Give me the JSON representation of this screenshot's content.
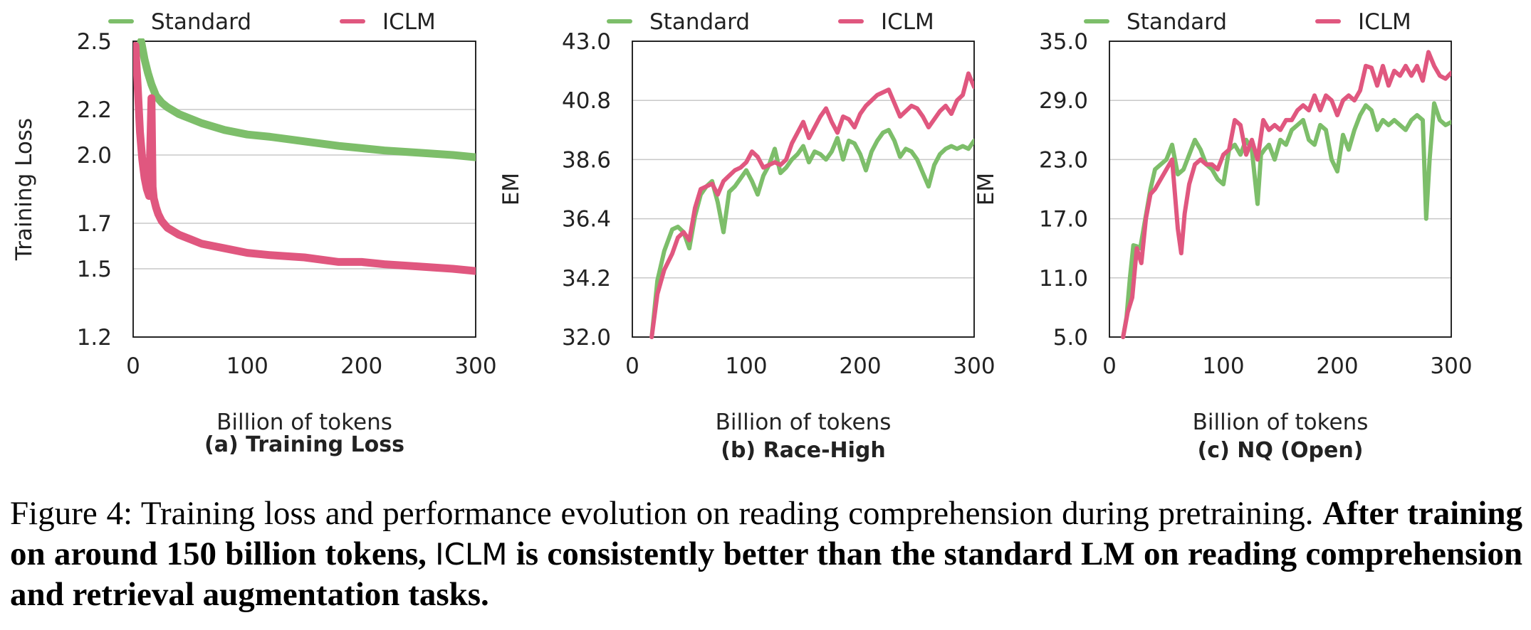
{
  "colors": {
    "standard": "#7dbe6a",
    "iclm": "#e0577f",
    "grid": "#c8c8c8",
    "axis": "#111111"
  },
  "chart_data": [
    {
      "type": "line",
      "panel": "(a) Training Loss",
      "xlabel": "Billion of tokens",
      "ylabel": "Training Loss",
      "xlim": [
        0,
        300
      ],
      "ylim": [
        1.2,
        2.5
      ],
      "xticks": [
        "0",
        "100",
        "200",
        "300"
      ],
      "yticks": [
        "1.2",
        "1.5",
        "1.7",
        "2.0",
        "2.2",
        "2.5"
      ],
      "legend_position": "top",
      "grid": true,
      "series": [
        {
          "name": "Standard",
          "x": [
            7,
            10,
            13,
            16,
            20,
            25,
            30,
            40,
            50,
            60,
            80,
            100,
            120,
            150,
            180,
            200,
            220,
            250,
            280,
            300
          ],
          "y": [
            2.5,
            2.42,
            2.36,
            2.31,
            2.26,
            2.23,
            2.21,
            2.18,
            2.16,
            2.14,
            2.11,
            2.09,
            2.08,
            2.06,
            2.04,
            2.03,
            2.02,
            2.01,
            2.0,
            1.99
          ]
        },
        {
          "name": "ICLM",
          "x": [
            2,
            4,
            6,
            8,
            10,
            12,
            14,
            16,
            17,
            18,
            20,
            22,
            25,
            30,
            40,
            50,
            60,
            80,
            100,
            120,
            150,
            180,
            200,
            220,
            250,
            280,
            300
          ],
          "y": [
            2.48,
            2.3,
            2.1,
            1.98,
            1.9,
            1.85,
            1.82,
            2.25,
            1.86,
            1.81,
            1.77,
            1.74,
            1.71,
            1.68,
            1.65,
            1.63,
            1.61,
            1.59,
            1.57,
            1.56,
            1.55,
            1.53,
            1.53,
            1.52,
            1.51,
            1.5,
            1.49
          ]
        }
      ]
    },
    {
      "type": "line",
      "panel": "(b) Race-High",
      "xlabel": "Billion of tokens",
      "ylabel": "EM",
      "xlim": [
        0,
        300
      ],
      "ylim": [
        32.0,
        43.0
      ],
      "xticks": [
        "0",
        "100",
        "200",
        "300"
      ],
      "yticks": [
        "32.0",
        "34.2",
        "36.4",
        "38.6",
        "40.8",
        "43.0"
      ],
      "legend_position": "top",
      "grid": true,
      "series": [
        {
          "name": "Standard",
          "x": [
            17,
            22,
            28,
            35,
            40,
            45,
            50,
            55,
            60,
            65,
            70,
            75,
            80,
            85,
            90,
            95,
            100,
            105,
            110,
            115,
            120,
            125,
            130,
            135,
            140,
            145,
            150,
            155,
            160,
            165,
            170,
            175,
            180,
            185,
            190,
            195,
            200,
            205,
            210,
            215,
            220,
            225,
            230,
            235,
            240,
            245,
            250,
            255,
            260,
            265,
            270,
            275,
            280,
            285,
            290,
            295,
            300
          ],
          "y": [
            32.0,
            34.1,
            35.2,
            36.0,
            36.1,
            35.9,
            35.3,
            36.5,
            37.3,
            37.6,
            37.8,
            37.0,
            35.9,
            37.4,
            37.6,
            37.9,
            38.2,
            37.8,
            37.3,
            38.0,
            38.4,
            39.0,
            38.1,
            38.3,
            38.6,
            38.8,
            39.1,
            38.5,
            38.9,
            38.8,
            38.6,
            38.9,
            39.4,
            38.6,
            39.3,
            39.2,
            38.8,
            38.2,
            38.9,
            39.3,
            39.6,
            39.7,
            39.3,
            38.7,
            39.0,
            38.9,
            38.6,
            38.1,
            37.6,
            38.4,
            38.8,
            39.0,
            39.1,
            39.0,
            39.1,
            39.0,
            39.3
          ]
        },
        {
          "name": "ICLM",
          "x": [
            17,
            22,
            28,
            35,
            40,
            45,
            50,
            55,
            60,
            65,
            70,
            75,
            80,
            85,
            90,
            95,
            100,
            105,
            110,
            115,
            120,
            125,
            130,
            135,
            140,
            145,
            150,
            155,
            160,
            165,
            170,
            175,
            180,
            185,
            190,
            195,
            200,
            205,
            210,
            215,
            220,
            225,
            230,
            235,
            240,
            245,
            250,
            255,
            260,
            265,
            270,
            275,
            280,
            285,
            290,
            295,
            300
          ],
          "y": [
            32.0,
            33.6,
            34.5,
            35.1,
            35.7,
            35.9,
            35.6,
            36.8,
            37.5,
            37.6,
            37.7,
            37.3,
            37.8,
            38.0,
            38.2,
            38.3,
            38.5,
            38.9,
            38.7,
            38.3,
            38.4,
            38.5,
            38.4,
            38.6,
            39.2,
            39.6,
            40.0,
            39.4,
            39.8,
            40.2,
            40.5,
            40.0,
            39.6,
            40.2,
            40.1,
            39.8,
            40.3,
            40.6,
            40.8,
            41.0,
            41.1,
            41.2,
            40.7,
            40.2,
            40.4,
            40.6,
            40.5,
            40.2,
            39.8,
            40.1,
            40.4,
            40.6,
            40.3,
            40.8,
            41.0,
            41.8,
            41.3
          ]
        }
      ]
    },
    {
      "type": "line",
      "panel": "(c) NQ (Open)",
      "xlabel": "Billion of tokens",
      "ylabel": "EM",
      "xlim": [
        0,
        300
      ],
      "ylim": [
        5.0,
        35.0
      ],
      "xticks": [
        "0",
        "100",
        "200",
        "300"
      ],
      "yticks": [
        "5.0",
        "11.0",
        "17.0",
        "23.0",
        "29.0",
        "35.0"
      ],
      "legend_position": "top",
      "grid": true,
      "series": [
        {
          "name": "Standard",
          "x": [
            12,
            15,
            18,
            21,
            24,
            27,
            30,
            33,
            36,
            40,
            45,
            50,
            55,
            60,
            65,
            70,
            75,
            80,
            85,
            90,
            95,
            100,
            105,
            110,
            115,
            120,
            125,
            130,
            133,
            136,
            140,
            145,
            150,
            155,
            160,
            165,
            170,
            175,
            180,
            185,
            190,
            195,
            200,
            205,
            210,
            215,
            220,
            225,
            230,
            235,
            240,
            245,
            250,
            255,
            260,
            265,
            270,
            275,
            278,
            281,
            285,
            290,
            295,
            300
          ],
          "y": [
            5.0,
            7.0,
            11.0,
            14.3,
            14.2,
            14.0,
            16.0,
            18.0,
            20.0,
            22.0,
            22.5,
            23.0,
            24.5,
            21.5,
            22.0,
            23.5,
            25.0,
            24.0,
            22.5,
            22.0,
            21.0,
            20.5,
            24.0,
            24.5,
            23.5,
            25.0,
            24.0,
            18.5,
            23.5,
            24.0,
            24.5,
            23.0,
            25.0,
            24.5,
            26.0,
            26.5,
            27.0,
            25.0,
            24.5,
            26.5,
            26.0,
            23.0,
            21.8,
            25.5,
            24.0,
            26.0,
            27.5,
            28.5,
            28.0,
            26.0,
            27.0,
            26.5,
            27.0,
            26.5,
            26.0,
            27.0,
            27.5,
            27.0,
            17.0,
            23.0,
            28.7,
            27.0,
            26.5,
            26.8
          ]
        },
        {
          "name": "ICLM",
          "x": [
            12,
            16,
            20,
            24,
            28,
            32,
            36,
            40,
            45,
            50,
            55,
            60,
            63,
            66,
            70,
            75,
            80,
            85,
            90,
            95,
            100,
            105,
            110,
            115,
            120,
            125,
            130,
            135,
            140,
            145,
            150,
            155,
            160,
            165,
            170,
            175,
            180,
            185,
            190,
            195,
            200,
            205,
            210,
            215,
            220,
            225,
            230,
            235,
            240,
            245,
            250,
            255,
            260,
            265,
            270,
            275,
            280,
            285,
            290,
            295,
            300
          ],
          "y": [
            5.0,
            7.5,
            9.0,
            14.0,
            12.5,
            17.0,
            19.5,
            20.0,
            21.0,
            22.0,
            23.0,
            16.0,
            13.5,
            17.5,
            20.5,
            22.5,
            23.0,
            22.5,
            22.5,
            22.0,
            23.5,
            24.0,
            27.0,
            26.5,
            23.5,
            25.0,
            23.0,
            27.0,
            26.0,
            26.5,
            26.0,
            27.0,
            27.0,
            28.0,
            28.5,
            28.0,
            29.5,
            28.0,
            29.5,
            29.0,
            27.5,
            29.0,
            29.5,
            29.0,
            30.0,
            32.5,
            32.3,
            30.5,
            32.5,
            30.5,
            32.0,
            31.5,
            32.5,
            31.5,
            32.5,
            31.0,
            33.9,
            32.5,
            31.5,
            31.2,
            31.8
          ]
        }
      ]
    }
  ],
  "caption": {
    "prefix": "Figure 4: Training loss and performance evolution on reading comprehension during pretraining.",
    "bold_start": "After training on around 150 billion tokens,",
    "method": "ICLM",
    "bold_end": "is consistently better than the standard LM on reading comprehension and retrieval augmentation tasks."
  }
}
